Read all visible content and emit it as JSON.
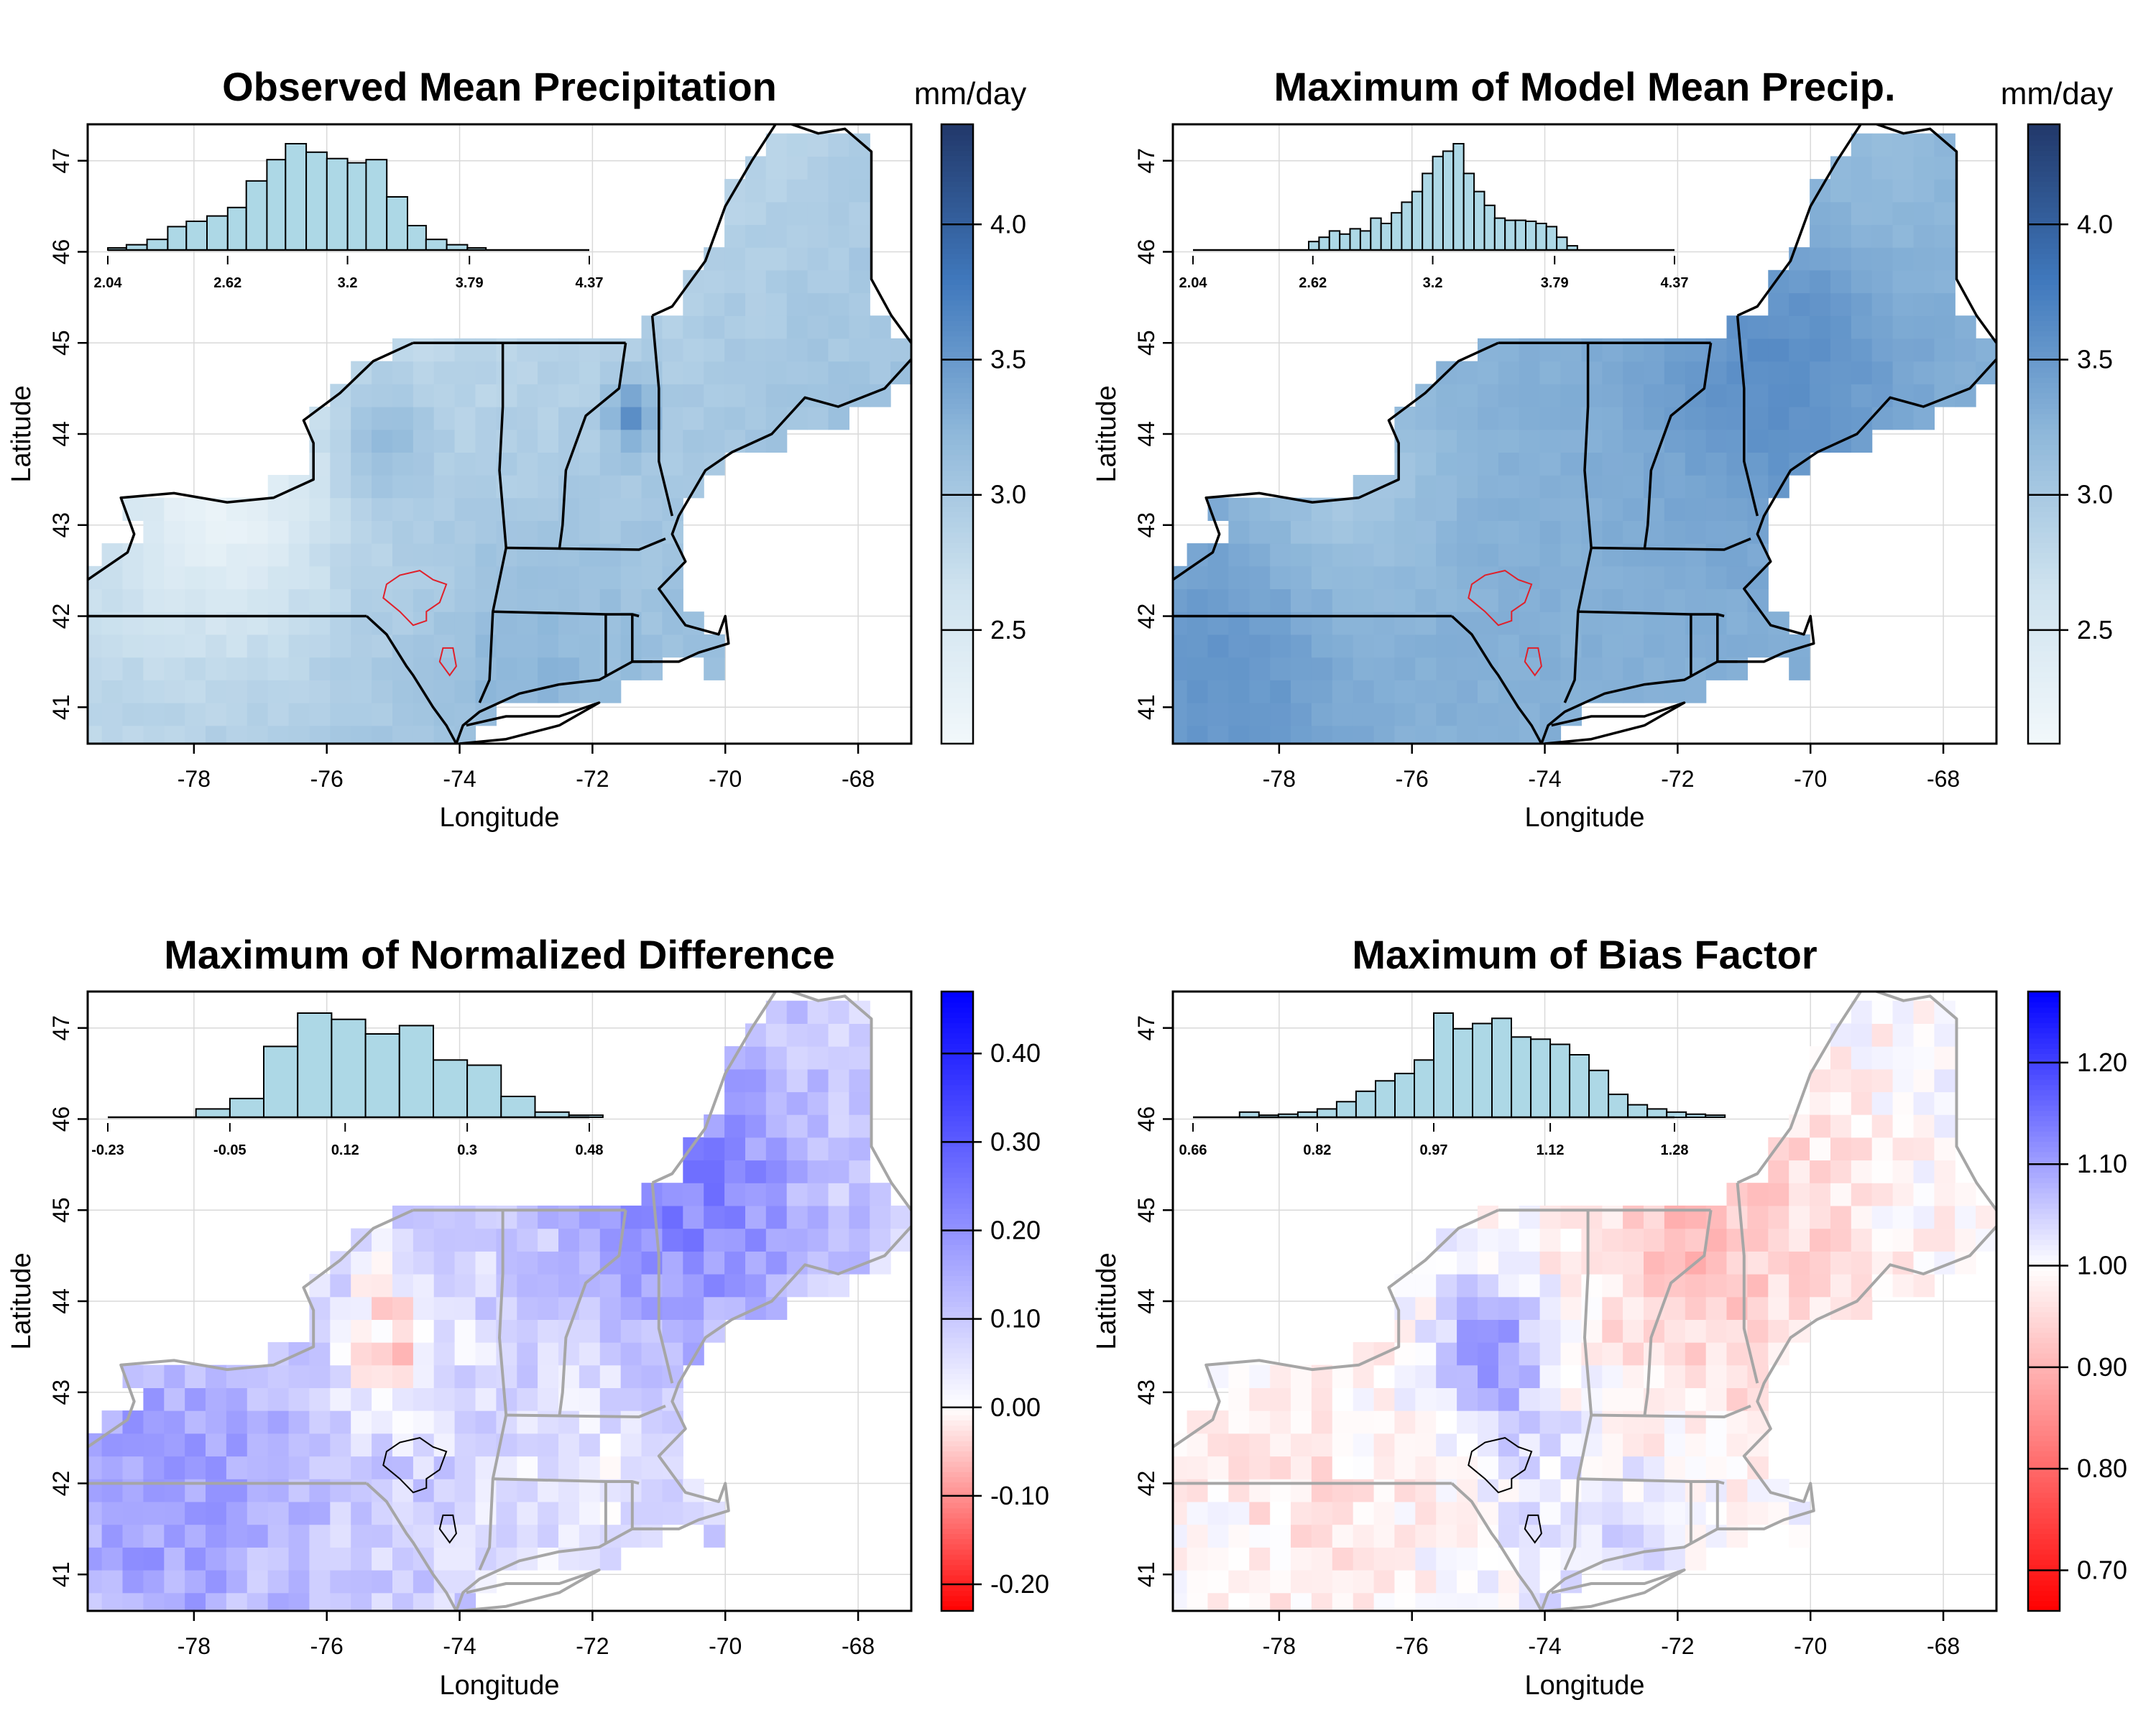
{
  "figure": {
    "xaxis_label": "Longitude",
    "yaxis_label": "Latitude"
  },
  "chart_data": [
    {
      "type": "heatmap",
      "title": "Observed Mean Precipitation",
      "units": "mm/day",
      "xlabel": "Longitude",
      "ylabel": "Latitude",
      "xlim": [
        -79.6,
        -67.2
      ],
      "ylim": [
        40.6,
        47.4
      ],
      "x_ticks": [
        "-78",
        "-76",
        "-74",
        "-72",
        "-70",
        "-68"
      ],
      "y_ticks": [
        "41",
        "42",
        "43",
        "44",
        "45",
        "46",
        "47"
      ],
      "colorbar": {
        "range": [
          2.08,
          4.37
        ],
        "ticks": [
          "2.5",
          "3.0",
          "3.5",
          "4.0"
        ],
        "colors": [
          "#f2f8fb",
          "#cfe3ef",
          "#8fb8da",
          "#3f78bc",
          "#22386a"
        ]
      },
      "histogram": {
        "tick_labels": [
          "2.04",
          "2.62",
          "3.2",
          "3.79",
          "4.37"
        ],
        "range": [
          2.04,
          4.37
        ],
        "bins": [
          [
            2.04,
            2.13,
            0.02
          ],
          [
            2.13,
            2.23,
            0.05
          ],
          [
            2.23,
            2.33,
            0.1
          ],
          [
            2.33,
            2.42,
            0.22
          ],
          [
            2.42,
            2.52,
            0.27
          ],
          [
            2.52,
            2.62,
            0.32
          ],
          [
            2.62,
            2.71,
            0.4
          ],
          [
            2.71,
            2.81,
            0.65
          ],
          [
            2.81,
            2.9,
            0.85
          ],
          [
            2.9,
            3.0,
            1.0
          ],
          [
            3.0,
            3.1,
            0.92
          ],
          [
            3.1,
            3.2,
            0.86
          ],
          [
            3.2,
            3.29,
            0.82
          ],
          [
            3.29,
            3.39,
            0.85
          ],
          [
            3.39,
            3.49,
            0.5
          ],
          [
            3.49,
            3.58,
            0.23
          ],
          [
            3.58,
            3.68,
            0.1
          ],
          [
            3.68,
            3.78,
            0.05
          ],
          [
            3.78,
            3.87,
            0.02
          ]
        ]
      }
    },
    {
      "type": "heatmap",
      "title": "Maximum of Model Mean Precip.",
      "units": "mm/day",
      "xlabel": "Longitude",
      "ylabel": "Latitude",
      "xlim": [
        -79.6,
        -67.2
      ],
      "ylim": [
        40.6,
        47.4
      ],
      "x_ticks": [
        "-78",
        "-76",
        "-74",
        "-72",
        "-70",
        "-68"
      ],
      "y_ticks": [
        "41",
        "42",
        "43",
        "44",
        "45",
        "46",
        "47"
      ],
      "colorbar": {
        "range": [
          2.08,
          4.37
        ],
        "ticks": [
          "2.5",
          "3.0",
          "3.5",
          "4.0"
        ],
        "colors": [
          "#f2f8fb",
          "#cfe3ef",
          "#8fb8da",
          "#3f78bc",
          "#22386a"
        ]
      },
      "histogram": {
        "tick_labels": [
          "2.04",
          "2.62",
          "3.2",
          "3.79",
          "4.37"
        ],
        "range": [
          2.04,
          4.37
        ],
        "bins": [
          [
            2.6,
            2.65,
            0.08
          ],
          [
            2.65,
            2.7,
            0.12
          ],
          [
            2.7,
            2.75,
            0.18
          ],
          [
            2.75,
            2.8,
            0.15
          ],
          [
            2.8,
            2.85,
            0.2
          ],
          [
            2.85,
            2.9,
            0.18
          ],
          [
            2.9,
            2.95,
            0.3
          ],
          [
            2.95,
            3.0,
            0.25
          ],
          [
            3.0,
            3.05,
            0.35
          ],
          [
            3.05,
            3.1,
            0.45
          ],
          [
            3.1,
            3.15,
            0.55
          ],
          [
            3.15,
            3.2,
            0.72
          ],
          [
            3.2,
            3.25,
            0.88
          ],
          [
            3.25,
            3.3,
            0.93
          ],
          [
            3.3,
            3.35,
            1.0
          ],
          [
            3.35,
            3.4,
            0.72
          ],
          [
            3.4,
            3.45,
            0.55
          ],
          [
            3.45,
            3.5,
            0.42
          ],
          [
            3.5,
            3.55,
            0.3
          ],
          [
            3.55,
            3.6,
            0.28
          ],
          [
            3.6,
            3.65,
            0.28
          ],
          [
            3.65,
            3.7,
            0.27
          ],
          [
            3.7,
            3.75,
            0.25
          ],
          [
            3.75,
            3.8,
            0.22
          ],
          [
            3.8,
            3.85,
            0.12
          ],
          [
            3.85,
            3.9,
            0.04
          ]
        ]
      }
    },
    {
      "type": "heatmap",
      "title": "Maximum of Normalized Difference",
      "xlabel": "Longitude",
      "ylabel": "Latitude",
      "xlim": [
        -79.6,
        -67.2
      ],
      "ylim": [
        40.6,
        47.4
      ],
      "x_ticks": [
        "-78",
        "-76",
        "-74",
        "-72",
        "-70",
        "-68"
      ],
      "y_ticks": [
        "41",
        "42",
        "43",
        "44",
        "45",
        "46",
        "47"
      ],
      "colorbar": {
        "range": [
          -0.23,
          0.47
        ],
        "ticks": [
          "-0.20",
          "-0.10",
          "0.00",
          "0.10",
          "0.20",
          "0.30",
          "0.40"
        ],
        "colors": [
          "#ff0000",
          "#ffffff",
          "#0000ff"
        ],
        "center": 0.0
      },
      "histogram": {
        "tick_labels": [
          "-0.23",
          "-0.05",
          "0.12",
          "0.3",
          "0.48"
        ],
        "range": [
          -0.23,
          0.48
        ],
        "bins": [
          [
            -0.1,
            -0.05,
            0.08
          ],
          [
            -0.05,
            0.0,
            0.18
          ],
          [
            0.0,
            0.05,
            0.68
          ],
          [
            0.05,
            0.1,
            1.0
          ],
          [
            0.1,
            0.15,
            0.94
          ],
          [
            0.15,
            0.2,
            0.8
          ],
          [
            0.2,
            0.25,
            0.88
          ],
          [
            0.25,
            0.3,
            0.55
          ],
          [
            0.3,
            0.35,
            0.5
          ],
          [
            0.35,
            0.4,
            0.2
          ],
          [
            0.4,
            0.45,
            0.05
          ],
          [
            0.45,
            0.5,
            0.02
          ]
        ]
      }
    },
    {
      "type": "heatmap",
      "title": "Maximum of Bias Factor",
      "xlabel": "Longitude",
      "ylabel": "Latitude",
      "xlim": [
        -79.6,
        -67.2
      ],
      "ylim": [
        40.6,
        47.4
      ],
      "x_ticks": [
        "-78",
        "-76",
        "-74",
        "-72",
        "-70",
        "-68"
      ],
      "y_ticks": [
        "41",
        "42",
        "43",
        "44",
        "45",
        "46",
        "47"
      ],
      "colorbar": {
        "range": [
          0.66,
          1.27
        ],
        "ticks": [
          "0.70",
          "0.80",
          "0.90",
          "1.00",
          "1.10",
          "1.20"
        ],
        "colors": [
          "#ff0000",
          "#ffffff",
          "#0000ff"
        ],
        "center": 1.0
      },
      "histogram": {
        "tick_labels": [
          "0.66",
          "0.82",
          "0.97",
          "1.12",
          "1.28"
        ],
        "range": [
          0.66,
          1.28
        ],
        "bins": [
          [
            0.72,
            0.745,
            0.05
          ],
          [
            0.745,
            0.77,
            0.02
          ],
          [
            0.77,
            0.795,
            0.03
          ],
          [
            0.795,
            0.82,
            0.05
          ],
          [
            0.82,
            0.845,
            0.08
          ],
          [
            0.845,
            0.87,
            0.15
          ],
          [
            0.87,
            0.895,
            0.25
          ],
          [
            0.895,
            0.92,
            0.35
          ],
          [
            0.92,
            0.945,
            0.42
          ],
          [
            0.945,
            0.97,
            0.55
          ],
          [
            0.97,
            0.995,
            1.0
          ],
          [
            0.995,
            1.02,
            0.85
          ],
          [
            1.02,
            1.045,
            0.9
          ],
          [
            1.045,
            1.07,
            0.95
          ],
          [
            1.07,
            1.095,
            0.77
          ],
          [
            1.095,
            1.12,
            0.75
          ],
          [
            1.12,
            1.145,
            0.7
          ],
          [
            1.145,
            1.17,
            0.6
          ],
          [
            1.17,
            1.195,
            0.45
          ],
          [
            1.195,
            1.22,
            0.22
          ],
          [
            1.22,
            1.245,
            0.12
          ],
          [
            1.245,
            1.27,
            0.08
          ],
          [
            1.27,
            1.295,
            0.05
          ],
          [
            1.295,
            1.32,
            0.03
          ],
          [
            1.32,
            1.345,
            0.02
          ]
        ]
      }
    }
  ]
}
